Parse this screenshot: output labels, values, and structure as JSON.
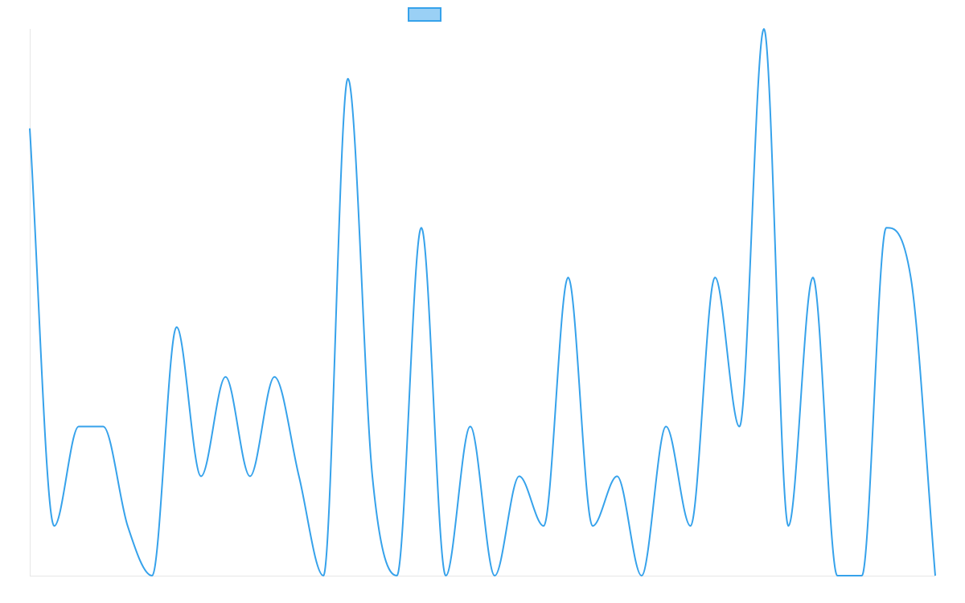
{
  "chart_data": {
    "type": "line",
    "title": "",
    "xlabel": "",
    "ylabel": "",
    "legend": {
      "placement": "top-center"
    },
    "grid": false,
    "ylim": [
      0,
      11
    ],
    "series": [
      {
        "name": "",
        "color": "#36a2eb",
        "fill": "#9ad0f5",
        "values": [
          9,
          1,
          3,
          3,
          1,
          0,
          5,
          2,
          4,
          2,
          4,
          2,
          0,
          10,
          2,
          0,
          7,
          0,
          3,
          0,
          2,
          1,
          6,
          1,
          2,
          0,
          3,
          1,
          6,
          3,
          11,
          1,
          6,
          0,
          0,
          7,
          6,
          0
        ]
      }
    ]
  }
}
